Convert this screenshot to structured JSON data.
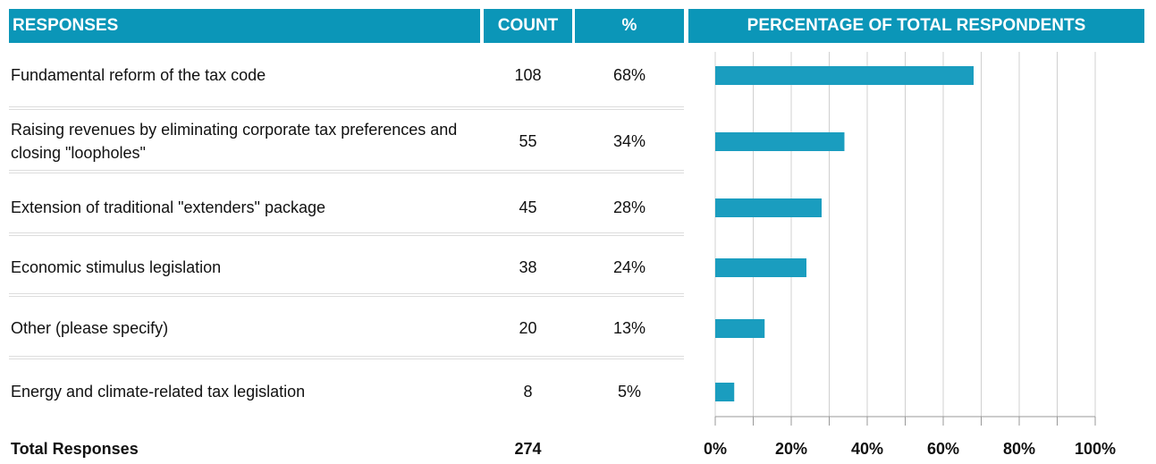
{
  "table": {
    "headers": [
      "RESPONSES",
      "COUNT",
      "%"
    ],
    "counts": [
      108,
      55,
      45,
      38,
      20,
      8
    ],
    "total_label": "Total Responses",
    "total": 274
  },
  "chart_data": {
    "type": "bar",
    "orientation": "horizontal",
    "title": "PERCENTAGE OF TOTAL RESPONDENTS",
    "categories": [
      "Fundamental reform of the tax code",
      "Raising revenues by eliminating corporate tax preferences and closing \"loopholes\"",
      "Extension of traditional \"extenders\" package",
      "Economic stimulus legislation",
      "Other (please specify)",
      "Energy and climate-related tax legislation"
    ],
    "values": [
      68,
      34,
      28,
      24,
      13,
      5
    ],
    "value_labels": [
      "68%",
      "34%",
      "28%",
      "24%",
      "13%",
      "5%"
    ],
    "color": "#1a9dbf",
    "xlim": [
      0,
      100
    ],
    "xticks": [
      {
        "value": 0,
        "label": "0%"
      },
      {
        "value": 20,
        "label": "20%"
      },
      {
        "value": 40,
        "label": "40%"
      },
      {
        "value": 60,
        "label": "60%"
      },
      {
        "value": 80,
        "label": "80%"
      },
      {
        "value": 100,
        "label": "100%"
      }
    ],
    "minor_xticks": [
      10,
      30,
      50,
      70,
      90
    ],
    "grid": true
  }
}
